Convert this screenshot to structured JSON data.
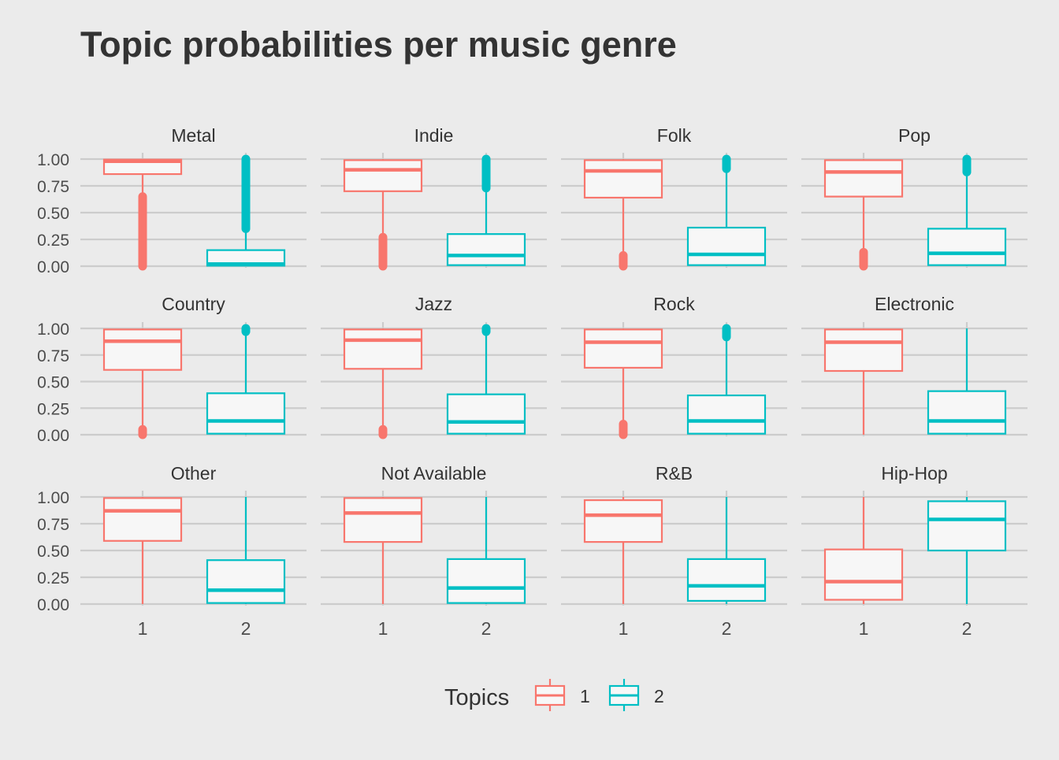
{
  "chart_data": {
    "type": "boxplot",
    "title": "Topic probabilities per music genre",
    "xlabel": "",
    "ylabel": "",
    "ylim": [
      0,
      1
    ],
    "y_ticks": [
      "0.00",
      "0.25",
      "0.50",
      "0.75",
      "1.00"
    ],
    "x_categories": [
      "1",
      "2"
    ],
    "legend": {
      "title": "Topics",
      "position": "bottom",
      "entries": [
        {
          "label": "1",
          "color": "#F8766D"
        },
        {
          "label": "2",
          "color": "#00BFC4"
        }
      ]
    },
    "colors": {
      "1": "#F8766D",
      "2": "#00BFC4",
      "panel_bg": "#ebebeb",
      "box_fill": "#f7f7f7",
      "grid": "#cccccc"
    },
    "grid": true,
    "facets": [
      {
        "genre": "Metal",
        "boxes": [
          {
            "topic": "1",
            "min": 0.65,
            "q1": 0.86,
            "median": 0.98,
            "q3": 0.995,
            "max": 1.0,
            "outliers": [
              0.0,
              0.65
            ]
          },
          {
            "topic": "2",
            "min": 0.0,
            "q1": 0.005,
            "median": 0.02,
            "q3": 0.15,
            "max": 0.35,
            "outliers": [
              0.35,
              1.0
            ]
          }
        ]
      },
      {
        "genre": "Indie",
        "boxes": [
          {
            "topic": "1",
            "min": 0.27,
            "q1": 0.7,
            "median": 0.9,
            "q3": 0.99,
            "max": 1.0,
            "outliers": [
              0.0,
              0.27
            ]
          },
          {
            "topic": "2",
            "min": 0.0,
            "q1": 0.01,
            "median": 0.1,
            "q3": 0.3,
            "max": 0.73,
            "outliers": [
              0.73,
              1.0
            ]
          }
        ]
      },
      {
        "genre": "Folk",
        "boxes": [
          {
            "topic": "1",
            "min": 0.1,
            "q1": 0.64,
            "median": 0.89,
            "q3": 0.99,
            "max": 1.0,
            "outliers": [
              0.0,
              0.1
            ]
          },
          {
            "topic": "2",
            "min": 0.0,
            "q1": 0.01,
            "median": 0.11,
            "q3": 0.36,
            "max": 0.91,
            "outliers": [
              0.91,
              1.0
            ]
          }
        ]
      },
      {
        "genre": "Pop",
        "boxes": [
          {
            "topic": "1",
            "min": 0.13,
            "q1": 0.65,
            "median": 0.88,
            "q3": 0.99,
            "max": 1.0,
            "outliers": [
              0.0,
              0.13
            ]
          },
          {
            "topic": "2",
            "min": 0.0,
            "q1": 0.01,
            "median": 0.12,
            "q3": 0.35,
            "max": 0.88,
            "outliers": [
              0.88,
              1.0
            ]
          }
        ]
      },
      {
        "genre": "Country",
        "boxes": [
          {
            "topic": "1",
            "min": 0.05,
            "q1": 0.61,
            "median": 0.88,
            "q3": 0.99,
            "max": 1.0,
            "outliers": [
              0.0,
              0.05
            ]
          },
          {
            "topic": "2",
            "min": 0.0,
            "q1": 0.01,
            "median": 0.13,
            "q3": 0.39,
            "max": 0.97,
            "outliers": [
              0.97,
              1.0
            ]
          }
        ]
      },
      {
        "genre": "Jazz",
        "boxes": [
          {
            "topic": "1",
            "min": 0.05,
            "q1": 0.62,
            "median": 0.89,
            "q3": 0.99,
            "max": 1.0,
            "outliers": [
              0.0,
              0.05
            ]
          },
          {
            "topic": "2",
            "min": 0.0,
            "q1": 0.01,
            "median": 0.12,
            "q3": 0.38,
            "max": 0.97,
            "outliers": [
              0.97,
              1.0
            ]
          }
        ]
      },
      {
        "genre": "Rock",
        "boxes": [
          {
            "topic": "1",
            "min": 0.1,
            "q1": 0.63,
            "median": 0.87,
            "q3": 0.99,
            "max": 1.0,
            "outliers": [
              0.0,
              0.1
            ]
          },
          {
            "topic": "2",
            "min": 0.0,
            "q1": 0.01,
            "median": 0.13,
            "q3": 0.37,
            "max": 0.92,
            "outliers": [
              0.92,
              1.0
            ]
          }
        ]
      },
      {
        "genre": "Electronic",
        "boxes": [
          {
            "topic": "1",
            "min": 0.0,
            "q1": 0.6,
            "median": 0.87,
            "q3": 0.99,
            "max": 1.0,
            "outliers": []
          },
          {
            "topic": "2",
            "min": 0.0,
            "q1": 0.01,
            "median": 0.13,
            "q3": 0.41,
            "max": 1.0,
            "outliers": []
          }
        ]
      },
      {
        "genre": "Other",
        "boxes": [
          {
            "topic": "1",
            "min": 0.0,
            "q1": 0.59,
            "median": 0.87,
            "q3": 0.99,
            "max": 1.0,
            "outliers": []
          },
          {
            "topic": "2",
            "min": 0.0,
            "q1": 0.01,
            "median": 0.13,
            "q3": 0.41,
            "max": 1.0,
            "outliers": []
          }
        ]
      },
      {
        "genre": "Not Available",
        "boxes": [
          {
            "topic": "1",
            "min": 0.0,
            "q1": 0.58,
            "median": 0.85,
            "q3": 0.99,
            "max": 1.0,
            "outliers": []
          },
          {
            "topic": "2",
            "min": 0.0,
            "q1": 0.01,
            "median": 0.15,
            "q3": 0.42,
            "max": 1.0,
            "outliers": []
          }
        ]
      },
      {
        "genre": "R&B",
        "boxes": [
          {
            "topic": "1",
            "min": 0.0,
            "q1": 0.58,
            "median": 0.83,
            "q3": 0.97,
            "max": 1.0,
            "outliers": []
          },
          {
            "topic": "2",
            "min": 0.0,
            "q1": 0.03,
            "median": 0.17,
            "q3": 0.42,
            "max": 1.0,
            "outliers": []
          }
        ]
      },
      {
        "genre": "Hip-Hop",
        "boxes": [
          {
            "topic": "1",
            "min": 0.0,
            "q1": 0.04,
            "median": 0.21,
            "q3": 0.51,
            "max": 1.0,
            "outliers": []
          },
          {
            "topic": "2",
            "min": 0.0,
            "q1": 0.5,
            "median": 0.79,
            "q3": 0.96,
            "max": 1.0,
            "outliers": []
          }
        ]
      }
    ]
  }
}
